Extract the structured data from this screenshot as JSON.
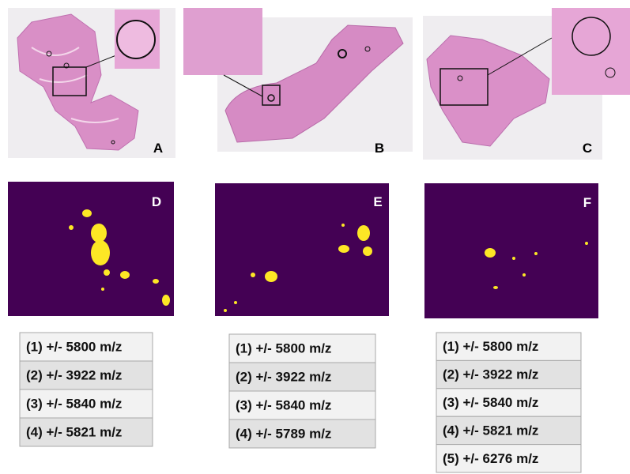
{
  "panels": [
    {
      "label": "A"
    },
    {
      "label": "B"
    },
    {
      "label": "C"
    },
    {
      "label": "D"
    },
    {
      "label": "E"
    },
    {
      "label": "F"
    }
  ],
  "tables": [
    {
      "rows": [
        "(1) +/- 5800 m/z",
        "(2) +/- 3922 m/z",
        "(3) +/- 5840 m/z",
        "(4) +/- 5821 m/z"
      ]
    },
    {
      "rows": [
        "(1) +/- 5800 m/z",
        "(2) +/- 3922 m/z",
        "(3) +/- 5840 m/z",
        "(4) +/- 5789 m/z"
      ]
    },
    {
      "rows": [
        "(1) +/- 5800 m/z",
        "(2) +/- 3922 m/z",
        "(3) +/- 5840 m/z",
        "(4) +/- 5821 m/z",
        "(5) +/- 6276 m/z"
      ]
    }
  ]
}
